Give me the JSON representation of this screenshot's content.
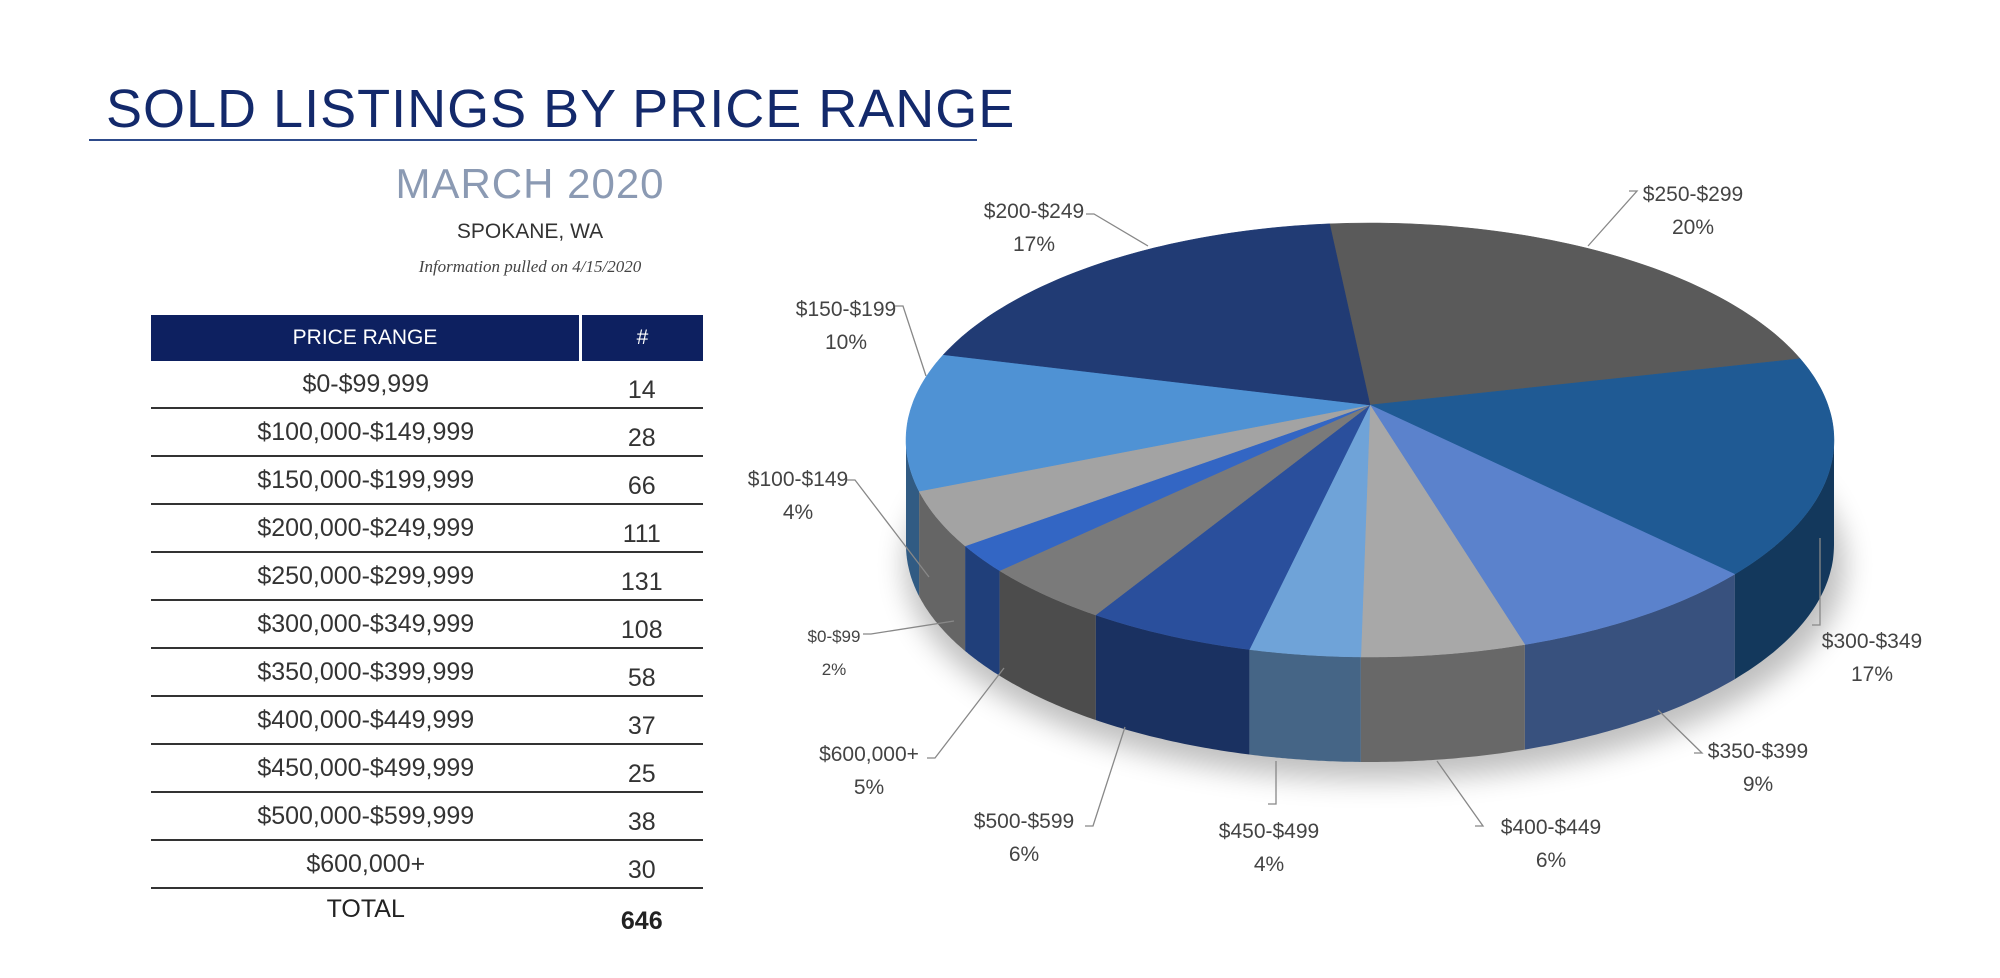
{
  "header": {
    "title": "SOLD LISTINGS BY PRICE RANGE",
    "month": "MARCH 2020",
    "location": "SPOKANE, WA",
    "info": "Information pulled on 4/15/2020"
  },
  "table": {
    "columns": [
      "PRICE RANGE",
      "#"
    ],
    "rows": [
      [
        "$0-$99,999",
        "14"
      ],
      [
        "$100,000-$149,999",
        "28"
      ],
      [
        "$150,000-$199,999",
        "66"
      ],
      [
        "$200,000-$249,999",
        "111"
      ],
      [
        "$250,000-$299,999",
        "131"
      ],
      [
        "$300,000-$349,999",
        "108"
      ],
      [
        "$350,000-$399,999",
        "58"
      ],
      [
        "$400,000-$449,999",
        "37"
      ],
      [
        "$450,000-$499,999",
        "25"
      ],
      [
        "$500,000-$599,999",
        "38"
      ],
      [
        "$600,000+",
        "30"
      ]
    ],
    "total_label": "TOTAL",
    "total_value": "646"
  },
  "chart_data": {
    "type": "pie",
    "style": "3d",
    "slices": [
      {
        "label": "$250-$299",
        "value": 131,
        "percent": "20%",
        "color": "#5a5a5a"
      },
      {
        "label": "$300-$349",
        "value": 108,
        "percent": "17%",
        "color": "#1f5a94"
      },
      {
        "label": "$350-$399",
        "value": 58,
        "percent": "9%",
        "color": "#5b82cc"
      },
      {
        "label": "$400-$449",
        "value": 37,
        "percent": "6%",
        "color": "#a8a8a8"
      },
      {
        "label": "$450-$499",
        "value": 25,
        "percent": "4%",
        "color": "#6fa3d8"
      },
      {
        "label": "$500-$599",
        "value": 38,
        "percent": "6%",
        "color": "#2a4f9c"
      },
      {
        "label": "$600,000+",
        "value": 30,
        "percent": "5%",
        "color": "#7a7a7a"
      },
      {
        "label": "$0-$99",
        "value": 14,
        "percent": "2%",
        "color": "#3366c4"
      },
      {
        "label": "$100-$149",
        "value": 28,
        "percent": "4%",
        "color": "#a3a3a3"
      },
      {
        "label": "$150-$199",
        "value": 66,
        "percent": "10%",
        "color": "#4f92d4"
      },
      {
        "label": "$200-$249",
        "value": 111,
        "percent": "17%",
        "color": "#213b74"
      }
    ]
  }
}
